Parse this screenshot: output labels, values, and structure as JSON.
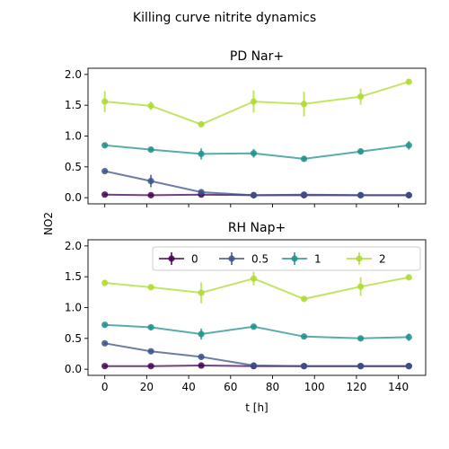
{
  "chart_data": {
    "type": "line",
    "suptitle": "Killing curve nitrite dynamics",
    "ylabel": "NO2",
    "xlabel": "t [h]",
    "x": [
      0,
      22,
      46,
      71,
      95,
      122,
      145
    ],
    "xticks": [
      0,
      20,
      40,
      60,
      80,
      100,
      120,
      140
    ],
    "xlim": [
      -8,
      153
    ],
    "ylim": [
      -0.1,
      2.1
    ],
    "yticks": [
      0.0,
      0.5,
      1.0,
      1.5,
      2.0
    ],
    "ytick_labels": [
      "0.0",
      "0.5",
      "1.0",
      "1.5",
      "2.0"
    ],
    "legend": {
      "location": "top-right",
      "columns": 4,
      "shown_in_panel": 1
    },
    "colors": {
      "0": "#440154",
      "0.5": "#3b528b",
      "1": "#21918c",
      "2": "#addc30"
    },
    "panels": [
      {
        "title": "PD Nar+",
        "series": [
          {
            "name": "0",
            "values": [
              0.05,
              0.04,
              0.05,
              0.04,
              0.04,
              0.04,
              0.04
            ],
            "errors": [
              0.01,
              0.01,
              0.01,
              0.01,
              0.01,
              0.01,
              0.01
            ]
          },
          {
            "name": "0.5",
            "values": [
              0.43,
              0.27,
              0.09,
              0.04,
              0.05,
              0.04,
              0.04
            ],
            "errors": [
              0.02,
              0.1,
              0.03,
              0.01,
              0.01,
              0.01,
              0.01
            ]
          },
          {
            "name": "1",
            "values": [
              0.85,
              0.78,
              0.71,
              0.72,
              0.63,
              0.75,
              0.85
            ],
            "errors": [
              0.03,
              0.03,
              0.09,
              0.07,
              0.04,
              0.04,
              0.07
            ]
          },
          {
            "name": "2",
            "values": [
              1.56,
              1.49,
              1.19,
              1.56,
              1.52,
              1.64,
              1.88
            ],
            "errors": [
              0.17,
              0.07,
              0.03,
              0.18,
              0.2,
              0.13,
              0.03
            ]
          }
        ]
      },
      {
        "title": "RH Nap+",
        "series": [
          {
            "name": "0",
            "values": [
              0.05,
              0.05,
              0.06,
              0.05,
              0.05,
              0.05,
              0.05
            ],
            "errors": [
              0.01,
              0.01,
              0.01,
              0.01,
              0.01,
              0.01,
              0.01
            ]
          },
          {
            "name": "0.5",
            "values": [
              0.42,
              0.29,
              0.2,
              0.06,
              0.05,
              0.05,
              0.05
            ],
            "errors": [
              0.02,
              0.02,
              0.03,
              0.01,
              0.01,
              0.01,
              0.01
            ]
          },
          {
            "name": "1",
            "values": [
              0.72,
              0.68,
              0.57,
              0.69,
              0.53,
              0.5,
              0.52
            ],
            "errors": [
              0.03,
              0.03,
              0.09,
              0.03,
              0.03,
              0.03,
              0.06
            ]
          },
          {
            "name": "2",
            "values": [
              1.4,
              1.33,
              1.24,
              1.47,
              1.14,
              1.34,
              1.49
            ],
            "errors": [
              0.05,
              0.03,
              0.17,
              0.11,
              0.03,
              0.15,
              0.03
            ]
          }
        ]
      }
    ]
  }
}
